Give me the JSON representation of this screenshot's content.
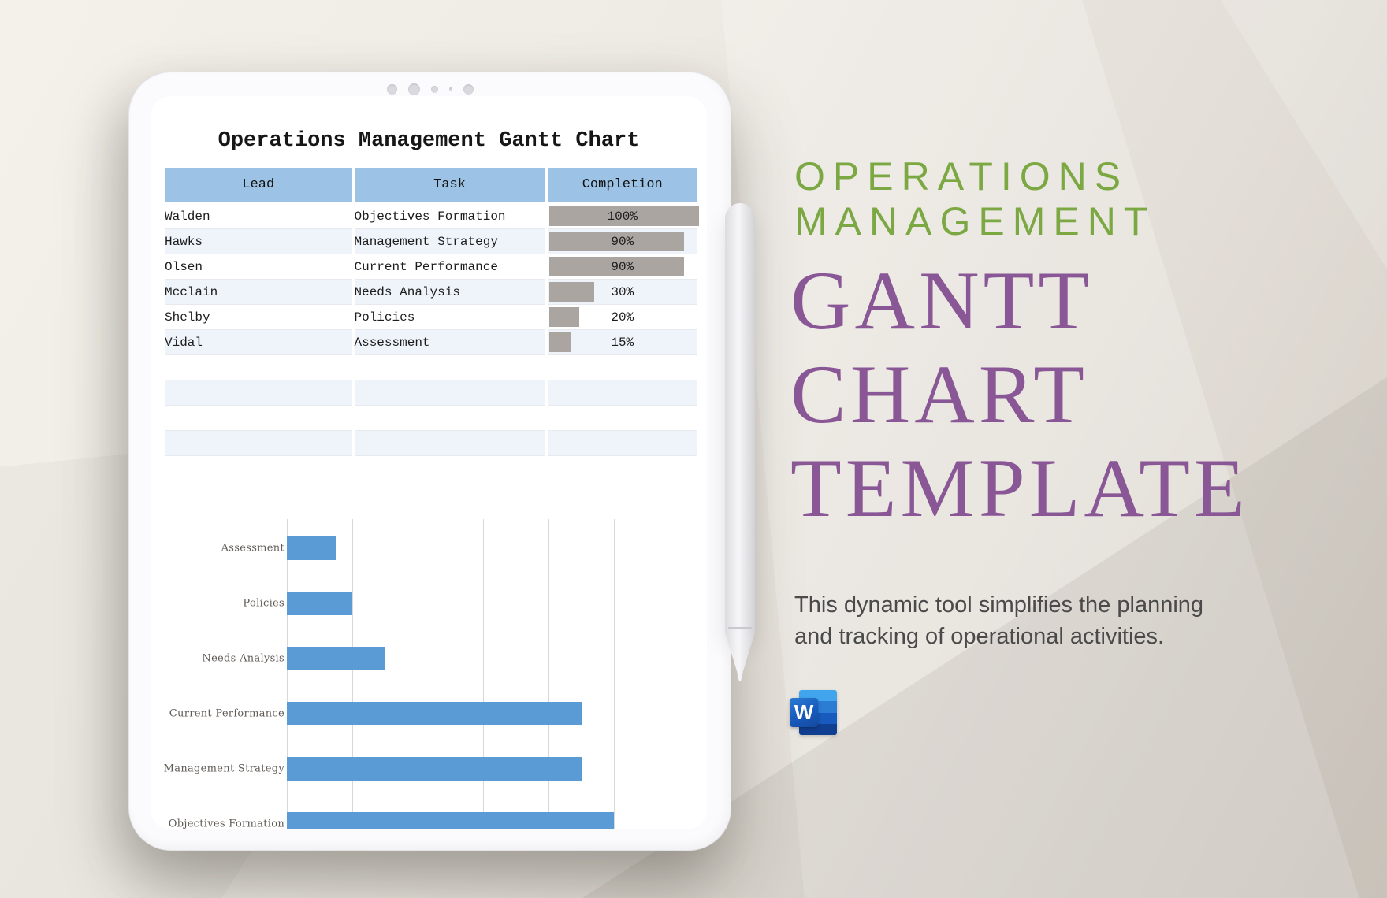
{
  "colors": {
    "table_header_blue": "#9CC2E5",
    "table_row_alt": "#EFF4FA",
    "completion_bar_gray": "#ABA5A1",
    "chart_bar_blue": "#5B9BD5",
    "kicker_green": "#7CA843",
    "title_purple": "#8A5796",
    "description_gray": "#4A4A4A",
    "word_icon_blue": "#185ABD"
  },
  "document": {
    "title": "Operations Management Gantt Chart",
    "table": {
      "headers": [
        "Lead",
        "Task",
        "Completion"
      ],
      "rows": [
        {
          "lead": "Walden",
          "task": "Objectives Formation",
          "completion_pct": 100,
          "completion_label": "100%"
        },
        {
          "lead": "Hawks",
          "task": "Management Strategy",
          "completion_pct": 90,
          "completion_label": "90%"
        },
        {
          "lead": "Olsen",
          "task": "Current Performance",
          "completion_pct": 90,
          "completion_label": "90%"
        },
        {
          "lead": "Mcclain",
          "task": "Needs Analysis",
          "completion_pct": 30,
          "completion_label": "30%"
        },
        {
          "lead": "Shelby",
          "task": "Policies",
          "completion_pct": 20,
          "completion_label": "20%"
        },
        {
          "lead": "Vidal",
          "task": "Assessment",
          "completion_pct": 15,
          "completion_label": "15%"
        }
      ],
      "empty_rows": 4
    }
  },
  "chart_data": {
    "type": "bar",
    "orientation": "horizontal",
    "categories": [
      "Assessment",
      "Policies",
      "Needs Analysis",
      "Current Performance",
      "Management Strategy",
      "Objectives Formation"
    ],
    "values": [
      15,
      20,
      30,
      90,
      90,
      100
    ],
    "title": "",
    "xlabel": "",
    "ylabel": "",
    "xlim": [
      0,
      100
    ],
    "gridline_interval": 20,
    "grid": "vertical",
    "legend": "none",
    "bar_color": "#5B9BD5"
  },
  "panel": {
    "kicker_lines": [
      "OPERATIONS",
      "MANAGEMENT"
    ],
    "title_lines": [
      "GANTT",
      "CHART",
      "TEMPLATE"
    ],
    "description_lines": [
      "This dynamic tool simplifies the planning",
      "and tracking of operational activities."
    ],
    "word_icon_letter": "W"
  }
}
